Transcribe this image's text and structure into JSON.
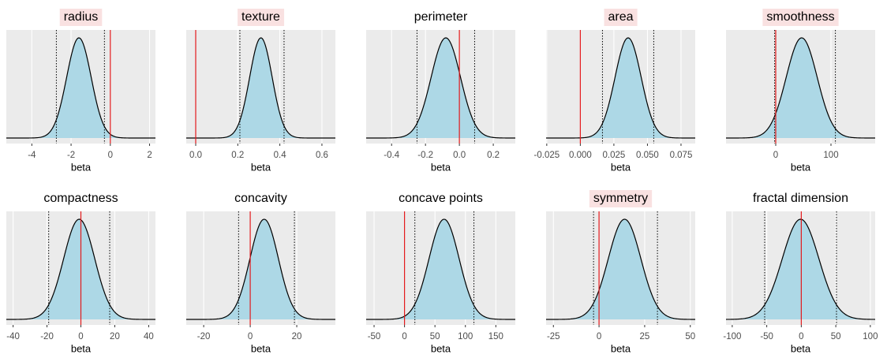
{
  "chart_data": [
    {
      "type": "density",
      "title": "radius",
      "highlight": true,
      "xlabel": "beta",
      "xlim": [
        -5.3,
        2.3
      ],
      "xticks": [
        -4,
        -2,
        0,
        2
      ],
      "mean": -1.6,
      "interval": [
        -2.75,
        -0.3
      ],
      "reference": 0,
      "color": "#add8e6"
    },
    {
      "type": "density",
      "title": "texture",
      "highlight": true,
      "xlabel": "beta",
      "xlim": [
        -0.045,
        0.664
      ],
      "xticks": [
        {
          "value": 0,
          "label": "0.0"
        },
        0.2,
        0.4,
        0.6
      ],
      "mean": 0.31,
      "interval": [
        0.21,
        0.42
      ],
      "reference": 0,
      "color": "#add8e6"
    },
    {
      "type": "density",
      "title": "perimeter",
      "highlight": false,
      "xlabel": "beta",
      "xlim": [
        -0.55,
        0.33
      ],
      "xticks": [
        -0.4,
        -0.2,
        {
          "value": 0,
          "label": "0.0"
        },
        0.2
      ],
      "mean": -0.08,
      "interval": [
        -0.25,
        0.09
      ],
      "reference": 0,
      "color": "#add8e6"
    },
    {
      "type": "density",
      "title": "area",
      "highlight": true,
      "xlabel": "beta",
      "xlim": [
        -0.0255,
        0.0856
      ],
      "xticks": [
        -0.025,
        {
          "value": 0,
          "label": "0.000"
        },
        0.025,
        {
          "value": 0.05,
          "label": "0.050"
        },
        0.075
      ],
      "mean": 0.0356,
      "interval": [
        0.0165,
        0.0547
      ],
      "reference": 0,
      "color": "#add8e6"
    },
    {
      "type": "density",
      "title": "smoothness",
      "highlight": true,
      "xlabel": "beta",
      "xlim": [
        -90,
        180
      ],
      "xticks": [
        0,
        100
      ],
      "mean": 47,
      "interval": [
        -2,
        108
      ],
      "reference": 0,
      "color": "#add8e6"
    },
    {
      "type": "density",
      "title": "compactness",
      "highlight": false,
      "xlabel": "beta",
      "xlim": [
        -44,
        44
      ],
      "xticks": [
        -40,
        -20,
        0,
        20,
        40
      ],
      "mean": -1,
      "interval": [
        -19,
        17
      ],
      "reference": 0,
      "color": "#add8e6"
    },
    {
      "type": "density",
      "title": "concavity",
      "highlight": false,
      "xlabel": "beta",
      "xlim": [
        -27.5,
        36.6
      ],
      "xticks": [
        -20,
        0,
        20
      ],
      "mean": 6,
      "interval": [
        -5,
        19
      ],
      "reference": 0,
      "color": "#add8e6"
    },
    {
      "type": "density",
      "title": "concave points",
      "highlight": false,
      "xlabel": "beta",
      "xlim": [
        -63,
        182
      ],
      "xticks": [
        -50,
        0,
        50,
        100,
        150
      ],
      "mean": 65,
      "interval": [
        17,
        114
      ],
      "reference": 0,
      "color": "#add8e6"
    },
    {
      "type": "density",
      "title": "symmetry",
      "highlight": true,
      "xlabel": "beta",
      "xlim": [
        -29,
        52.7
      ],
      "xticks": [
        -25,
        0,
        25,
        50
      ],
      "mean": 14,
      "interval": [
        -3,
        32
      ],
      "reference": 0,
      "color": "#add8e6"
    },
    {
      "type": "density",
      "title": "fractal dimension",
      "highlight": false,
      "xlabel": "beta",
      "xlim": [
        -109,
        107
      ],
      "xticks": [
        -100,
        -50,
        0,
        50,
        100
      ],
      "mean": -1,
      "interval": [
        -53,
        51
      ],
      "reference": 0,
      "color": "#add8e6"
    }
  ]
}
